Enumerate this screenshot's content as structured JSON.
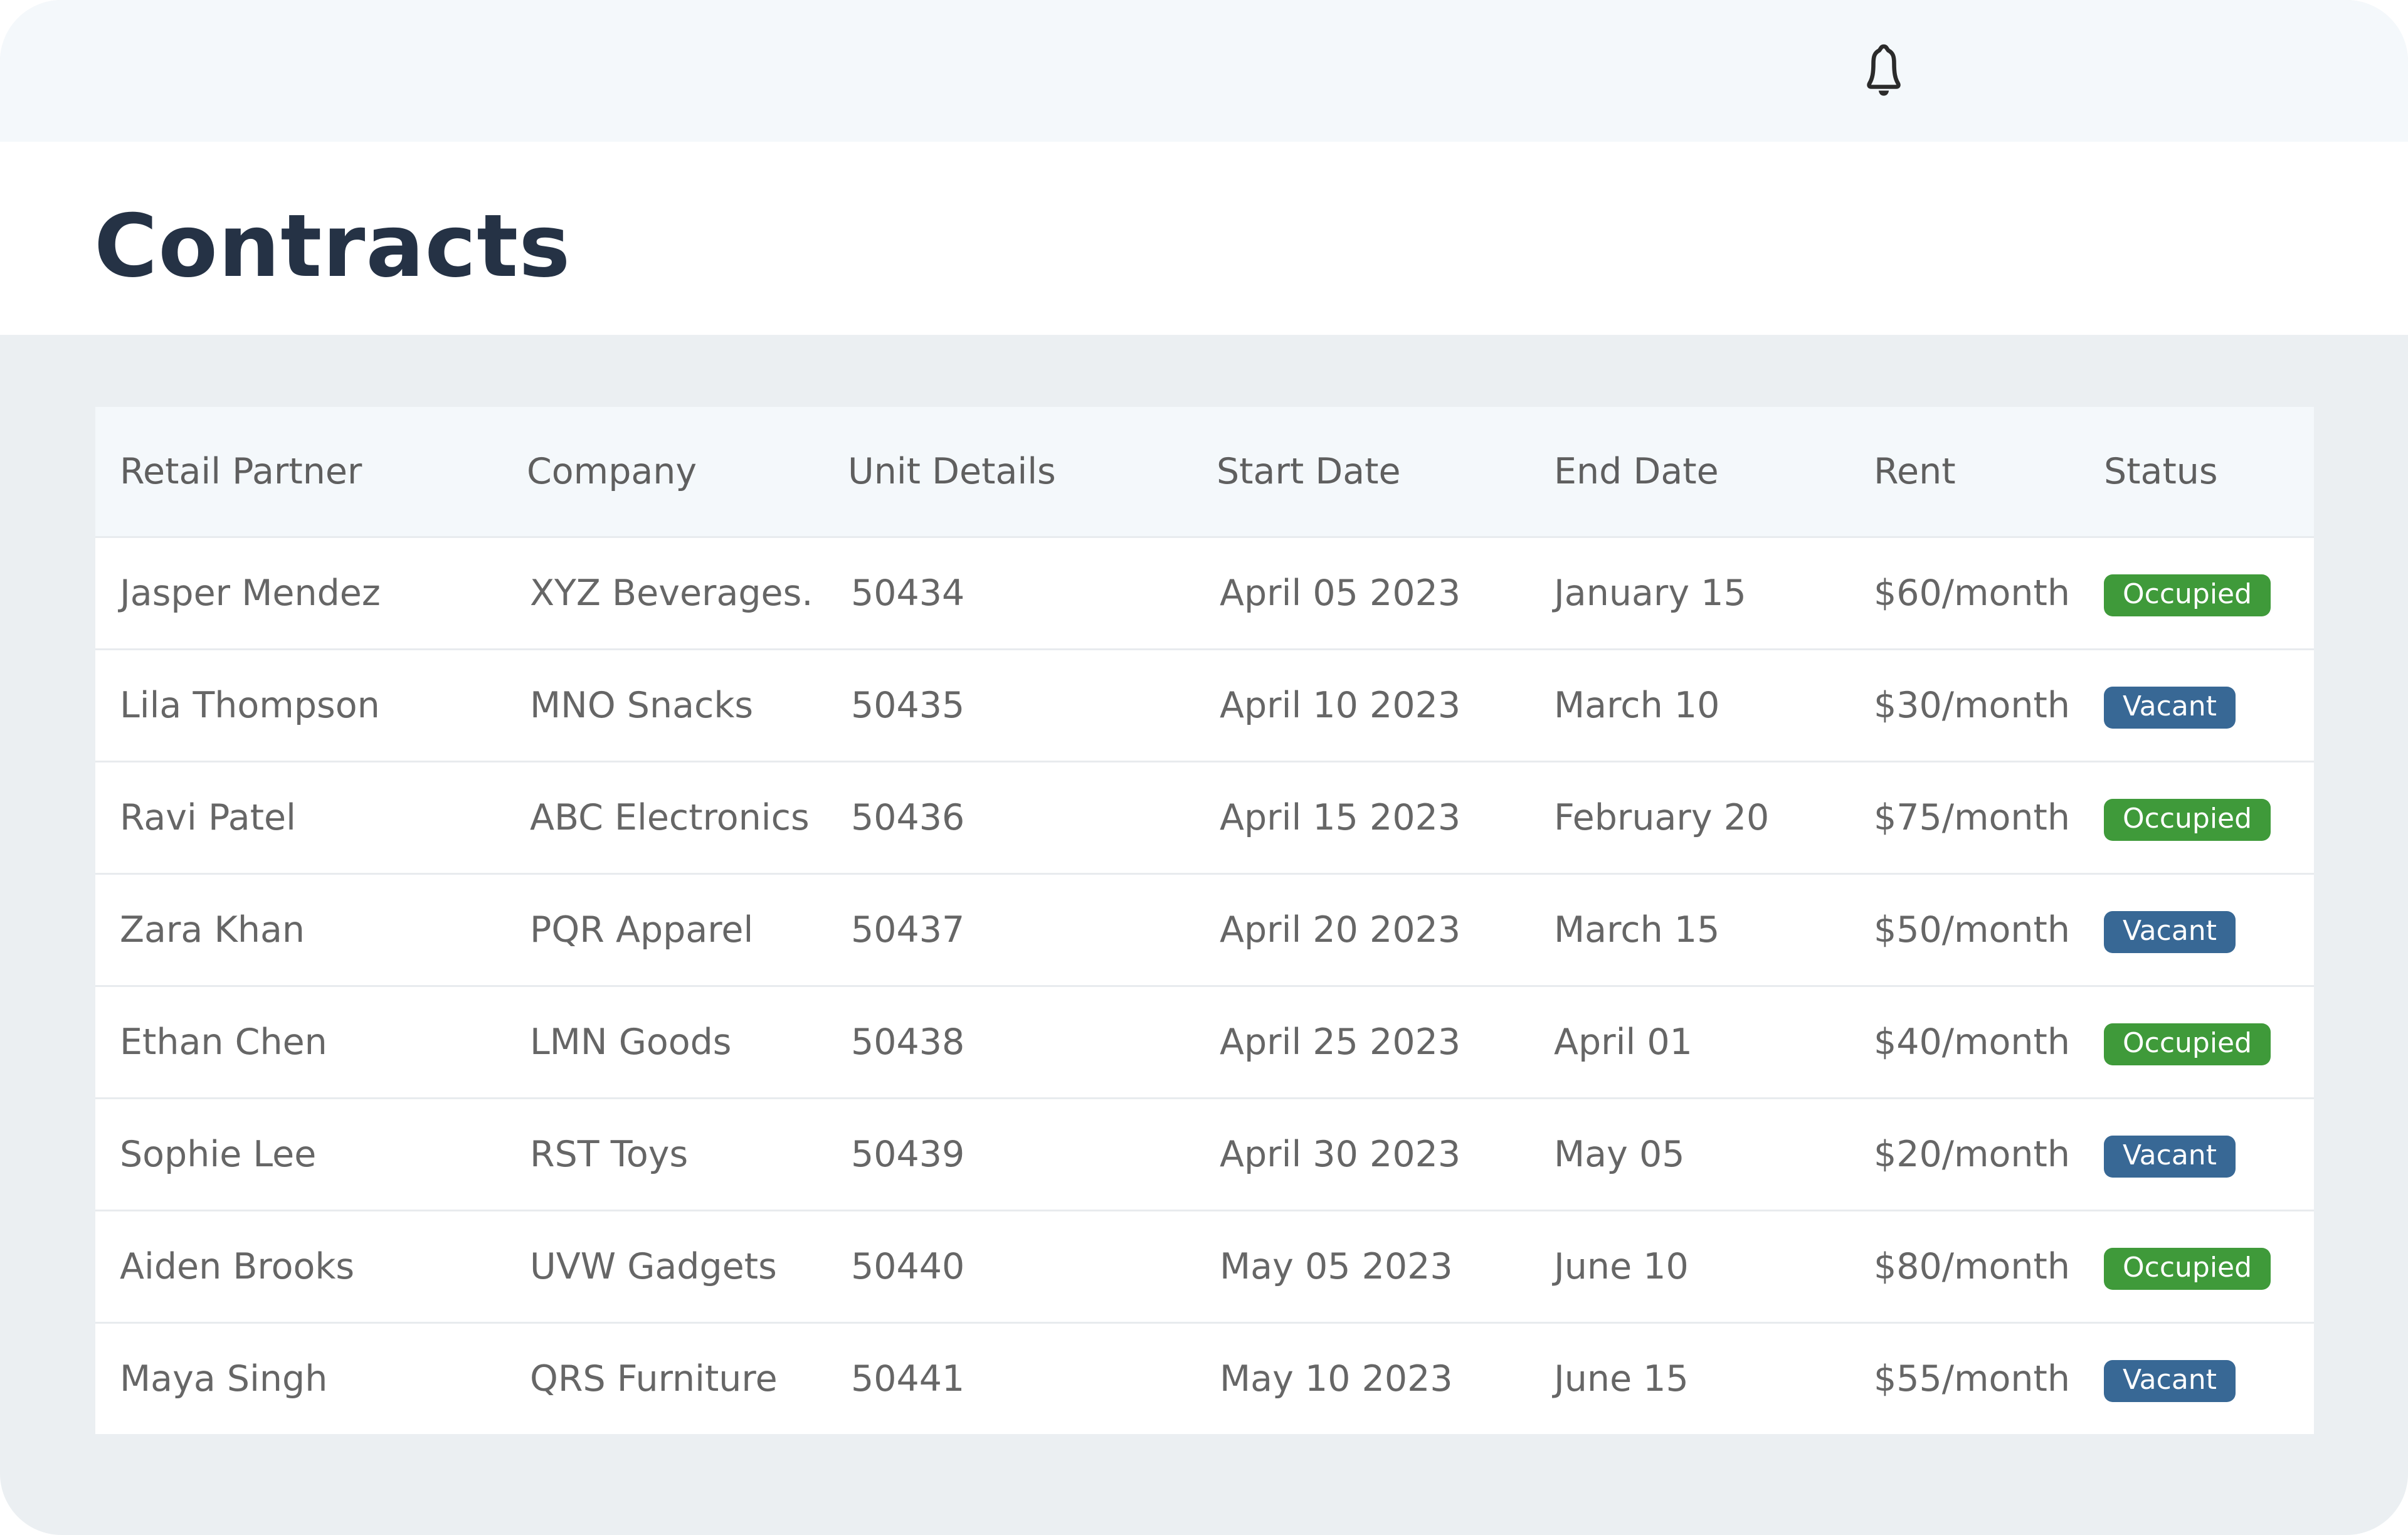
{
  "header": {
    "bell_icon": "bell-icon"
  },
  "page": {
    "title": "Contracts"
  },
  "colors": {
    "occupied": "#3f9a3a",
    "vacant": "#386895",
    "title": "#253245"
  },
  "table": {
    "columns": [
      "Retail Partner",
      "Company",
      "Unit Details",
      "Start Date",
      "End Date",
      "Rent",
      "Status"
    ],
    "rows": [
      [
        "Jasper Mendez",
        "XYZ Beverages.",
        "50434",
        "April 05 2023",
        "January 15",
        "$60/month",
        "Occupied"
      ],
      [
        "Lila Thompson",
        "MNO Snacks",
        "50435",
        "April 10 2023",
        "March 10",
        "$30/month",
        "Vacant"
      ],
      [
        "Ravi Patel",
        "ABC Electronics",
        "50436",
        "April 15 2023",
        "February 20",
        "$75/month",
        "Occupied"
      ],
      [
        "Zara Khan",
        "PQR Apparel",
        "50437",
        "April 20 2023",
        "March 15",
        "$50/month",
        "Vacant"
      ],
      [
        "Ethan Chen",
        "LMN  Goods",
        "50438",
        "April 25 2023",
        "April 01",
        "$40/month",
        "Occupied"
      ],
      [
        "Sophie Lee",
        "RST Toys",
        "50439",
        "April 30 2023",
        "May 05",
        "$20/month",
        "Vacant"
      ],
      [
        "Aiden Brooks",
        "UVW Gadgets",
        "50440",
        "May 05 2023",
        "June 10",
        "$80/month",
        "Occupied"
      ],
      [
        "Maya Singh",
        "QRS Furniture",
        "50441",
        "May 10 2023",
        "June 15",
        "$55/month",
        "Vacant"
      ]
    ]
  }
}
